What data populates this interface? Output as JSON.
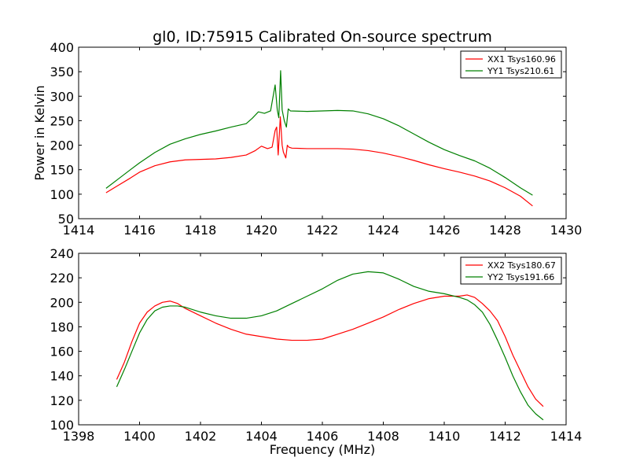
{
  "chart_data": [
    {
      "type": "line",
      "title": "gl0, ID:75915 Calibrated On-source spectrum",
      "xlabel": "",
      "ylabel": "Power in Kelvin",
      "xlim": [
        1414,
        1430
      ],
      "ylim": [
        50,
        400
      ],
      "xticks": [
        1414,
        1416,
        1418,
        1420,
        1422,
        1424,
        1426,
        1428,
        1430
      ],
      "yticks": [
        50,
        100,
        150,
        200,
        250,
        300,
        350,
        400
      ],
      "grid": false,
      "legend_position": "top-right",
      "series": [
        {
          "name": "XX1 Tsys160.96",
          "color": "#ff0000",
          "x": [
            1414.9,
            1415.3,
            1415.7,
            1416.0,
            1416.5,
            1417.0,
            1417.5,
            1418.0,
            1418.5,
            1419.0,
            1419.5,
            1419.8,
            1420.0,
            1420.2,
            1420.35,
            1420.45,
            1420.5,
            1420.55,
            1420.62,
            1420.68,
            1420.72,
            1420.8,
            1420.85,
            1420.9,
            1421.0,
            1421.5,
            1422.0,
            1422.5,
            1423.0,
            1423.5,
            1424.0,
            1424.5,
            1425.0,
            1425.5,
            1426.0,
            1426.5,
            1427.0,
            1427.5,
            1428.0,
            1428.5,
            1428.9
          ],
          "y": [
            103,
            118,
            133,
            145,
            158,
            166,
            170,
            171,
            172,
            175,
            180,
            189,
            198,
            193,
            196,
            230,
            237,
            180,
            258,
            200,
            186,
            174,
            200,
            196,
            194,
            193,
            193,
            193,
            192,
            189,
            184,
            177,
            169,
            160,
            152,
            145,
            137,
            127,
            113,
            96,
            76
          ]
        },
        {
          "name": "YY1 Tsys210.61",
          "color": "#008000",
          "x": [
            1414.9,
            1415.3,
            1415.7,
            1416.0,
            1416.5,
            1417.0,
            1417.5,
            1418.0,
            1418.5,
            1419.0,
            1419.5,
            1419.7,
            1419.9,
            1420.1,
            1420.3,
            1420.45,
            1420.52,
            1420.57,
            1420.63,
            1420.68,
            1420.75,
            1420.82,
            1420.88,
            1420.95,
            1421.5,
            1422.0,
            1422.5,
            1423.0,
            1423.5,
            1424.0,
            1424.5,
            1425.0,
            1425.5,
            1426.0,
            1426.5,
            1427.0,
            1427.5,
            1428.0,
            1428.5,
            1428.9
          ],
          "y": [
            112,
            131,
            150,
            164,
            185,
            202,
            213,
            222,
            229,
            237,
            244,
            255,
            268,
            265,
            270,
            323,
            272,
            256,
            352,
            272,
            250,
            237,
            274,
            270,
            269,
            270,
            271,
            270,
            264,
            254,
            240,
            223,
            206,
            191,
            179,
            168,
            153,
            134,
            113,
            98
          ]
        }
      ]
    },
    {
      "type": "line",
      "title": "",
      "xlabel": "Frequency (MHz)",
      "ylabel": "",
      "xlim": [
        1398,
        1414
      ],
      "ylim": [
        100,
        240
      ],
      "xticks": [
        1398,
        1400,
        1402,
        1404,
        1406,
        1408,
        1410,
        1412,
        1414
      ],
      "yticks": [
        100,
        120,
        140,
        160,
        180,
        200,
        220,
        240
      ],
      "grid": false,
      "legend_position": "top-right",
      "series": [
        {
          "name": "XX2 Tsys180.67",
          "color": "#ff0000",
          "x": [
            1399.25,
            1399.5,
            1399.75,
            1400.0,
            1400.25,
            1400.5,
            1400.75,
            1401.0,
            1401.25,
            1401.5,
            1402.0,
            1402.5,
            1403.0,
            1403.5,
            1404.0,
            1404.5,
            1405.0,
            1405.5,
            1406.0,
            1406.5,
            1407.0,
            1407.5,
            1408.0,
            1408.5,
            1409.0,
            1409.5,
            1410.0,
            1410.5,
            1410.75,
            1411.0,
            1411.25,
            1411.5,
            1411.75,
            1412.0,
            1412.25,
            1412.5,
            1412.75,
            1413.0,
            1413.25
          ],
          "y": [
            137,
            151,
            168,
            183,
            192,
            197,
            200,
            201,
            199,
            195,
            189,
            183,
            178,
            174,
            172,
            170,
            169,
            169,
            170,
            174,
            178,
            183,
            188,
            194,
            199,
            203,
            205,
            205,
            206,
            204,
            199,
            193,
            185,
            172,
            157,
            144,
            131,
            121,
            115
          ]
        },
        {
          "name": "YY2 Tsys191.66",
          "color": "#008000",
          "x": [
            1399.25,
            1399.5,
            1399.75,
            1400.0,
            1400.25,
            1400.5,
            1400.75,
            1401.0,
            1401.25,
            1401.5,
            1402.0,
            1402.5,
            1403.0,
            1403.5,
            1404.0,
            1404.5,
            1405.0,
            1405.5,
            1406.0,
            1406.5,
            1407.0,
            1407.5,
            1408.0,
            1408.5,
            1409.0,
            1409.5,
            1410.0,
            1410.5,
            1410.75,
            1411.0,
            1411.25,
            1411.5,
            1411.75,
            1412.0,
            1412.25,
            1412.5,
            1412.75,
            1413.0,
            1413.25
          ],
          "y": [
            131,
            145,
            160,
            175,
            186,
            193,
            196,
            197,
            197,
            196,
            192,
            189,
            187,
            187,
            189,
            193,
            199,
            205,
            211,
            218,
            223,
            225,
            224,
            219,
            213,
            209,
            207,
            204,
            202,
            198,
            192,
            182,
            169,
            155,
            140,
            127,
            116,
            109,
            104
          ]
        }
      ]
    }
  ]
}
